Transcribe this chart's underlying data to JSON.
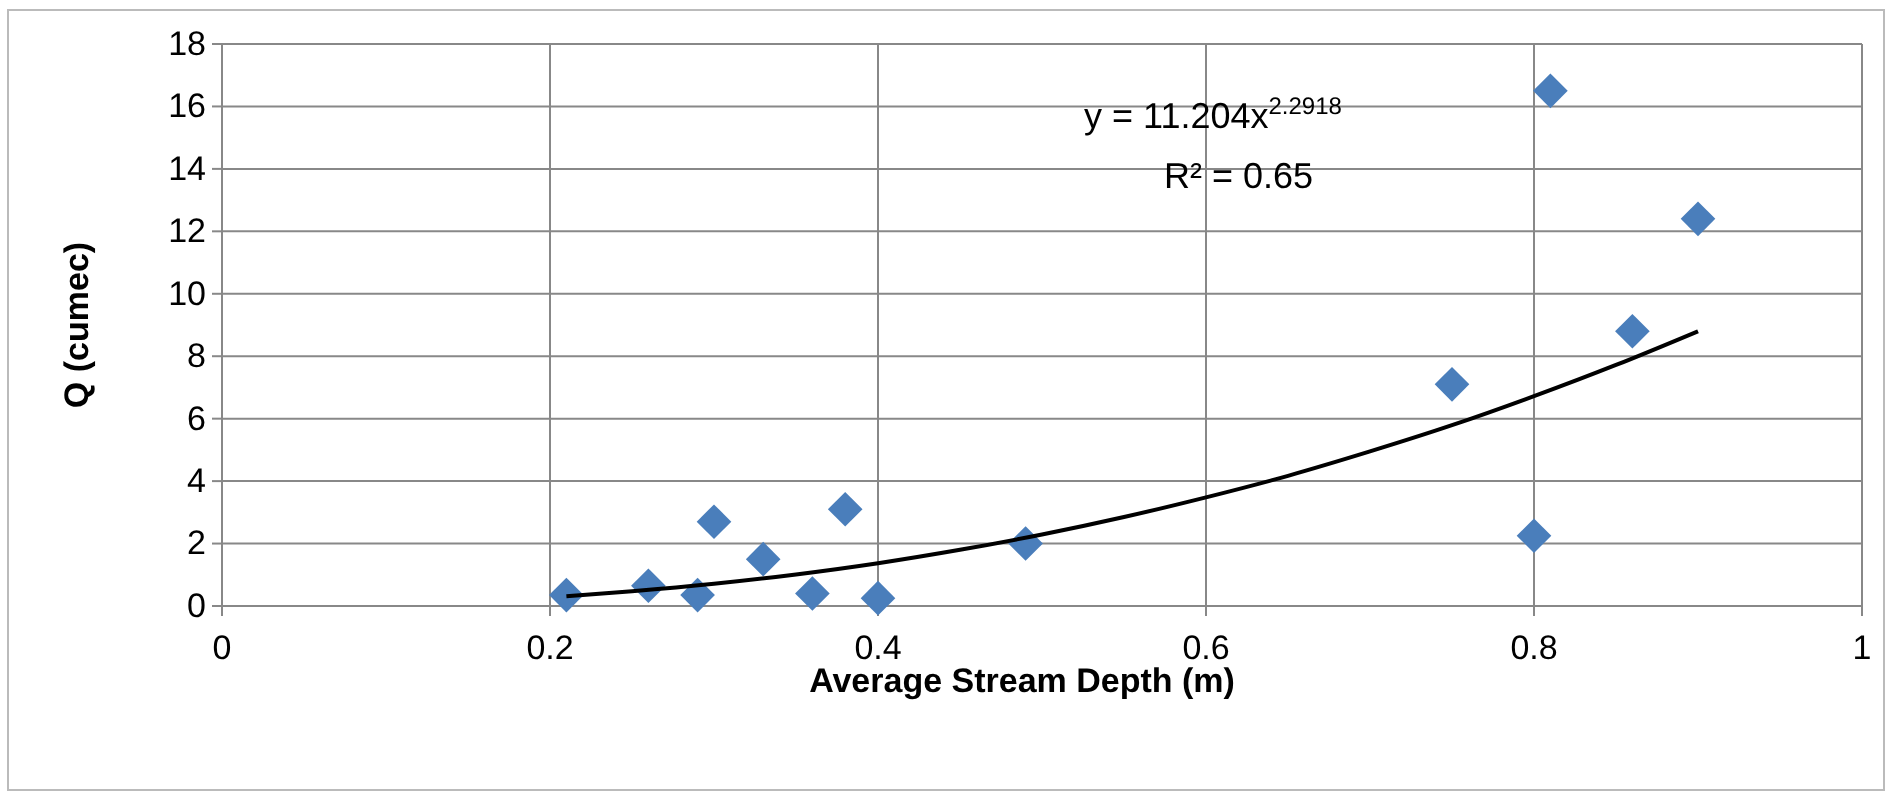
{
  "chart_data": {
    "type": "scatter",
    "xlabel": "Average Stream Depth (m)",
    "ylabel": "Q (cumec)",
    "xlim": [
      0,
      1
    ],
    "xticks": [
      0,
      0.2,
      0.4,
      0.6,
      0.8,
      1
    ],
    "ylim": [
      0,
      18
    ],
    "yticks": [
      0,
      2,
      4,
      6,
      8,
      10,
      12,
      14,
      16,
      18
    ],
    "grid": true,
    "annotations": [
      "y = 11.204x$^{2.2918}$",
      "R² = 0.65"
    ],
    "series": [
      {
        "color": "#4a7ebb",
        "marker": "diamond",
        "x": [
          0.21,
          0.26,
          0.29,
          0.3,
          0.33,
          0.36,
          0.38,
          0.4,
          0.49,
          0.75,
          0.8,
          0.81,
          0.86,
          0.9
        ],
        "values": [
          0.35,
          0.65,
          0.35,
          2.7,
          1.5,
          0.4,
          3.1,
          0.25,
          2.0,
          7.1,
          2.25,
          16.5,
          8.8,
          12.4
        ]
      },
      {
        "type": "line",
        "color": "#000000",
        "marker": "none",
        "x": [
          0.21,
          0.25,
          0.3,
          0.35,
          0.4,
          0.45,
          0.5,
          0.55,
          0.6,
          0.65,
          0.7,
          0.75,
          0.8,
          0.85,
          0.9
        ],
        "values": [
          0.31,
          0.47,
          0.71,
          1.01,
          1.37,
          1.8,
          2.29,
          2.85,
          3.48,
          4.17,
          4.95,
          5.79,
          6.72,
          7.72,
          8.8
        ]
      }
    ]
  }
}
